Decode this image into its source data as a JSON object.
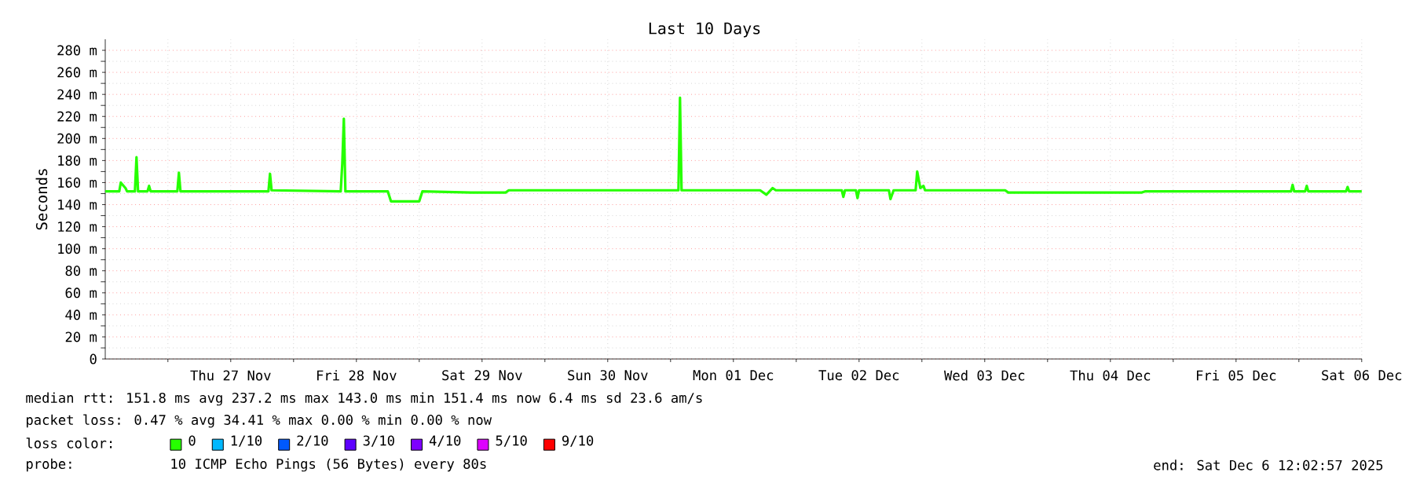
{
  "chart_data": {
    "type": "line",
    "title": "Last 10 Days",
    "ylabel": "Seconds",
    "legend_title": "loss color:",
    "x": [
      "2025-11-26T12:02",
      "2025-11-26T14:42",
      "2025-11-26T15:00",
      "2025-11-26T15:54",
      "2025-11-26T16:12",
      "2025-11-26T17:42",
      "2025-11-26T18:00",
      "2025-11-26T18:18",
      "2025-11-26T20:06",
      "2025-11-26T20:24",
      "2025-11-26T20:42",
      "2025-11-27T01:48",
      "2025-11-27T02:06",
      "2025-11-27T02:24",
      "2025-11-27T19:12",
      "2025-11-27T19:30",
      "2025-11-27T19:48",
      "2025-11-28T09:00",
      "2025-11-28T09:18",
      "2025-11-28T09:36",
      "2025-11-28T09:54",
      "2025-11-28T18:00",
      "2025-11-28T18:36",
      "2025-11-29T00:00",
      "2025-11-29T00:36",
      "2025-11-29T09:54",
      "2025-11-29T16:30",
      "2025-11-29T17:06",
      "2025-12-01T01:30",
      "2025-12-01T01:48",
      "2025-12-01T02:06",
      "2025-12-01T17:06",
      "2025-12-01T18:18",
      "2025-12-01T19:30",
      "2025-12-01T20:06",
      "2025-12-02T08:42",
      "2025-12-02T09:00",
      "2025-12-02T09:18",
      "2025-12-02T11:24",
      "2025-12-02T11:42",
      "2025-12-02T12:00",
      "2025-12-02T17:42",
      "2025-12-02T18:00",
      "2025-12-02T18:36",
      "2025-12-02T22:48",
      "2025-12-02T23:06",
      "2025-12-02T23:42",
      "2025-12-03T00:18",
      "2025-12-03T00:36",
      "2025-12-03T15:54",
      "2025-12-03T16:30",
      "2025-12-04T18:00",
      "2025-12-04T18:36",
      "2025-12-05T22:30",
      "2025-12-05T22:48",
      "2025-12-05T23:06",
      "2025-12-06T01:12",
      "2025-12-06T01:30",
      "2025-12-06T01:48",
      "2025-12-06T09:00",
      "2025-12-06T09:18",
      "2025-12-06T09:36",
      "2025-12-06T12:00"
    ],
    "series": [
      {
        "name": "0",
        "color": "#26ff00",
        "values": [
          152,
          152,
          160,
          155,
          152,
          152,
          183,
          152,
          152,
          157,
          152,
          152,
          169,
          152,
          152,
          168,
          153,
          152,
          177,
          218,
          152,
          152,
          143,
          143,
          152,
          151,
          151,
          153,
          153,
          237,
          153,
          153,
          149,
          155,
          153,
          153,
          147,
          153,
          153,
          146,
          153,
          153,
          145,
          153,
          153,
          170,
          155,
          157,
          153,
          153,
          151,
          151,
          152,
          152,
          158,
          152,
          152,
          157,
          152,
          152,
          156,
          152,
          152
        ]
      },
      {
        "name": "1/10",
        "color": "#00b8ff",
        "values": [
          null,
          null,
          null,
          null,
          null,
          null,
          null,
          null,
          null,
          null,
          null,
          null,
          null,
          null,
          null,
          null,
          null,
          null,
          null,
          null,
          null,
          null,
          null,
          null,
          null,
          null,
          null,
          null,
          null,
          null,
          null,
          null,
          null,
          null,
          null,
          null,
          null,
          null,
          null,
          null,
          null,
          null,
          null,
          null,
          null,
          null,
          null,
          null,
          null,
          null,
          null,
          null,
          null,
          null,
          null,
          null,
          null,
          null,
          null,
          null,
          null,
          null,
          null
        ]
      },
      {
        "name": "2/10",
        "color": "#0059ff",
        "values": [
          null,
          null,
          null,
          null,
          null,
          null,
          null,
          null,
          null,
          null,
          null,
          null,
          null,
          null,
          null,
          null,
          null,
          null,
          null,
          null,
          null,
          null,
          null,
          null,
          null,
          null,
          null,
          null,
          null,
          null,
          null,
          null,
          null,
          null,
          null,
          null,
          null,
          null,
          null,
          null,
          null,
          null,
          null,
          null,
          null,
          null,
          null,
          null,
          null,
          null,
          null,
          null,
          null,
          null,
          null,
          null,
          null,
          null,
          null,
          null,
          null,
          null,
          null
        ]
      },
      {
        "name": "3/10",
        "color": "#5e00ff",
        "values": [
          null,
          null,
          null,
          null,
          null,
          null,
          null,
          null,
          null,
          null,
          null,
          null,
          null,
          null,
          null,
          null,
          null,
          null,
          null,
          null,
          null,
          null,
          null,
          null,
          null,
          null,
          null,
          null,
          null,
          null,
          null,
          null,
          null,
          null,
          null,
          null,
          null,
          null,
          null,
          null,
          null,
          null,
          null,
          null,
          null,
          null,
          null,
          null,
          null,
          null,
          null,
          null,
          null,
          null,
          null,
          null,
          null,
          null,
          null,
          null,
          null,
          null,
          null
        ]
      },
      {
        "name": "4/10",
        "color": "#7e00ff",
        "values": [
          null,
          null,
          null,
          null,
          null,
          null,
          null,
          null,
          null,
          null,
          null,
          null,
          null,
          null,
          null,
          null,
          null,
          null,
          null,
          null,
          null,
          null,
          null,
          null,
          null,
          null,
          null,
          null,
          null,
          null,
          null,
          null,
          null,
          null,
          null,
          null,
          null,
          null,
          null,
          null,
          null,
          null,
          null,
          null,
          null,
          null,
          null,
          null,
          null,
          null,
          null,
          null,
          null,
          null,
          null,
          null,
          null,
          null,
          null,
          null,
          null,
          null,
          null
        ]
      },
      {
        "name": "5/10",
        "color": "#dd00ff",
        "values": [
          null,
          null,
          null,
          null,
          null,
          null,
          null,
          null,
          null,
          null,
          null,
          null,
          null,
          null,
          null,
          null,
          null,
          null,
          null,
          null,
          null,
          null,
          null,
          null,
          null,
          null,
          null,
          null,
          null,
          null,
          null,
          null,
          null,
          null,
          null,
          null,
          null,
          null,
          null,
          null,
          null,
          null,
          null,
          null,
          null,
          null,
          null,
          null,
          null,
          null,
          null,
          null,
          null,
          null,
          null,
          null,
          null,
          null,
          null,
          null,
          null,
          null,
          null
        ]
      },
      {
        "name": "9/10",
        "color": "#ff0000",
        "values": [
          null,
          null,
          null,
          null,
          null,
          null,
          null,
          null,
          null,
          null,
          null,
          null,
          null,
          null,
          null,
          null,
          null,
          null,
          null,
          null,
          null,
          null,
          null,
          null,
          null,
          null,
          null,
          null,
          null,
          null,
          null,
          null,
          null,
          null,
          null,
          null,
          null,
          null,
          null,
          null,
          null,
          null,
          null,
          null,
          null,
          null,
          null,
          null,
          null,
          null,
          null,
          null,
          null,
          null,
          null,
          null,
          null,
          null,
          null,
          null,
          null,
          null,
          null
        ]
      }
    ],
    "xlim": [
      "2025-11-26T12:02",
      "2025-12-06T12:02"
    ],
    "xticks": [
      {
        "value": "2025-11-27T00:00",
        "label": null
      },
      {
        "value": "2025-11-27T12:00",
        "label": "Thu 27 Nov"
      },
      {
        "value": "2025-11-28T00:00",
        "label": null
      },
      {
        "value": "2025-11-28T12:00",
        "label": "Fri 28 Nov"
      },
      {
        "value": "2025-11-29T00:00",
        "label": null
      },
      {
        "value": "2025-11-29T12:00",
        "label": "Sat 29 Nov"
      },
      {
        "value": "2025-11-30T00:00",
        "label": null
      },
      {
        "value": "2025-11-30T12:00",
        "label": "Sun 30 Nov"
      },
      {
        "value": "2025-12-01T00:00",
        "label": null
      },
      {
        "value": "2025-12-01T12:00",
        "label": "Mon 01 Dec"
      },
      {
        "value": "2025-12-02T00:00",
        "label": null
      },
      {
        "value": "2025-12-02T12:00",
        "label": "Tue 02 Dec"
      },
      {
        "value": "2025-12-03T00:00",
        "label": null
      },
      {
        "value": "2025-12-03T12:00",
        "label": "Wed 03 Dec"
      },
      {
        "value": "2025-12-04T00:00",
        "label": null
      },
      {
        "value": "2025-12-04T12:00",
        "label": "Thu 04 Dec"
      },
      {
        "value": "2025-12-05T00:00",
        "label": null
      },
      {
        "value": "2025-12-05T12:00",
        "label": "Fri 05 Dec"
      },
      {
        "value": "2025-12-06T00:00",
        "label": null
      },
      {
        "value": "2025-12-06T12:00",
        "label": "Sat 06 Dec"
      }
    ],
    "ylim": [
      0,
      290
    ],
    "yticks": [
      0,
      {
        "value": 20,
        "label": "20 m"
      },
      {
        "value": 40,
        "label": "40 m"
      },
      {
        "value": 60,
        "label": "60 m"
      },
      {
        "value": 80,
        "label": "80 m"
      },
      {
        "value": 100,
        "label": "100 m"
      },
      {
        "value": 120,
        "label": "120 m"
      },
      {
        "value": 140,
        "label": "140 m"
      },
      {
        "value": 160,
        "label": "160 m"
      },
      {
        "value": 180,
        "label": "180 m"
      },
      {
        "value": 200,
        "label": "200 m"
      },
      {
        "value": 220,
        "label": "220 m"
      },
      {
        "value": 240,
        "label": "240 m"
      },
      {
        "value": 260,
        "label": "260 m"
      },
      {
        "value": 280,
        "label": "280 m"
      }
    ],
    "grid": true,
    "legend": "bottom",
    "marker": "none",
    "annotations": [
      "median rtt:  151.8 ms avg  237.2 ms max  143.0 ms min  151.4 ms now  6.4 ms sd  23.6   am/s",
      "packet loss: 0.47 % avg  34.41 % max  0.00 % min  0.00 % now",
      "probe:",
      "10 ICMP Echo Pings (56 Bytes) every 80s",
      "end: Sat Dec  6 12:02:57 2025"
    ]
  }
}
